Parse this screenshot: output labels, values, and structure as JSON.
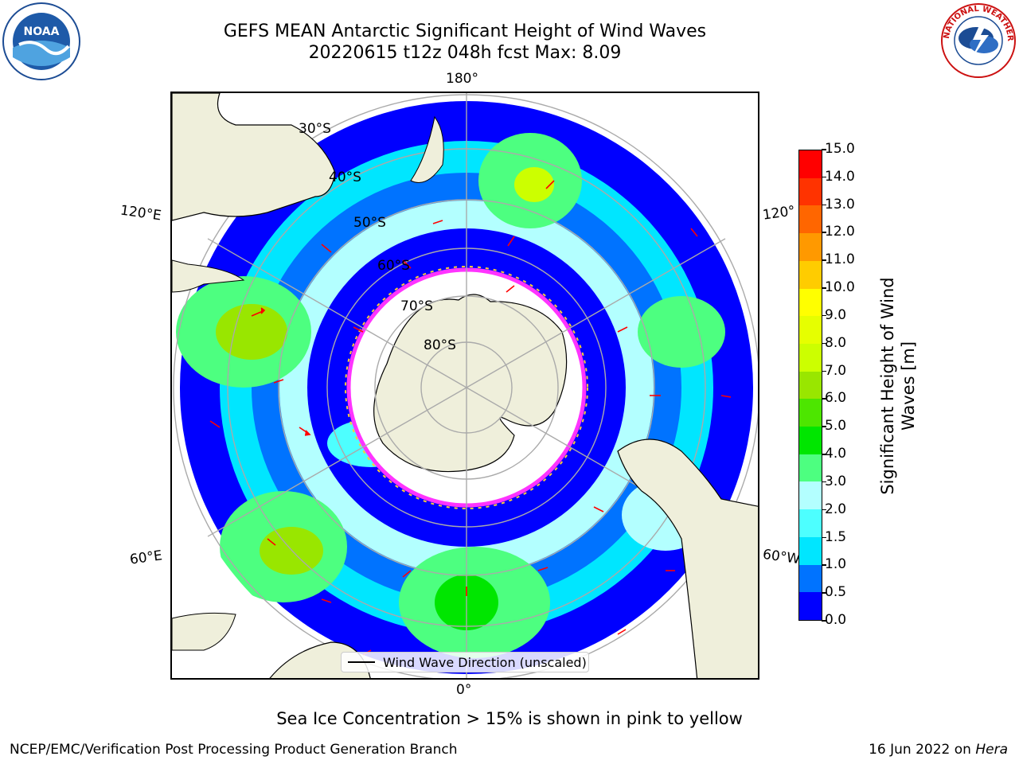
{
  "header": {
    "title_line1": "GEFS MEAN Antarctic Significant Height of Wind Waves",
    "title_line2": "20220615 t12z 048h fcst   Max: 8.09"
  },
  "logos": {
    "left": "NOAA",
    "right": "NATIONAL WEATHER SERVICE"
  },
  "map": {
    "longitude_labels": {
      "top": "180°",
      "bottom": "0°",
      "upper_left": "120°E",
      "upper_right": "120°",
      "lower_left": "60°E",
      "lower_right": "60°W"
    },
    "latitude_labels": [
      "30°S",
      "40°S",
      "50°S",
      "60°S",
      "70°S",
      "80°S"
    ],
    "legend_label": "Wind Wave Direction (unscaled)",
    "arrow_color": "#ff0000",
    "land_color": "#efefdb",
    "ice_edge_colors": [
      "#ff33ff",
      "#ffcc33"
    ]
  },
  "colorbar": {
    "title_line1": "Significant Height of Wind",
    "title_line2": "Waves [m]",
    "ticks": [
      "0.0",
      "0.5",
      "1.0",
      "1.5",
      "2.0",
      "3.0",
      "4.0",
      "5.0",
      "6.0",
      "7.0",
      "8.0",
      "9.0",
      "10.0",
      "11.0",
      "12.0",
      "13.0",
      "14.0",
      "15.0"
    ],
    "colors": [
      "#0000ff",
      "#0073ff",
      "#00e6ff",
      "#4dffff",
      "#b3ffff",
      "#4dff80",
      "#00e600",
      "#4de600",
      "#99e600",
      "#ccff00",
      "#e6ff00",
      "#ffff00",
      "#ffcc00",
      "#ff9900",
      "#ff6600",
      "#ff3300",
      "#ff0000"
    ]
  },
  "footer": {
    "ice_note": "Sea Ice Concentration > 15% is shown in pink to yellow",
    "branch": "NCEP/EMC/Verification Post Processing Product Generation Branch",
    "date": "16 Jun 2022 on ",
    "host": "Hera"
  }
}
